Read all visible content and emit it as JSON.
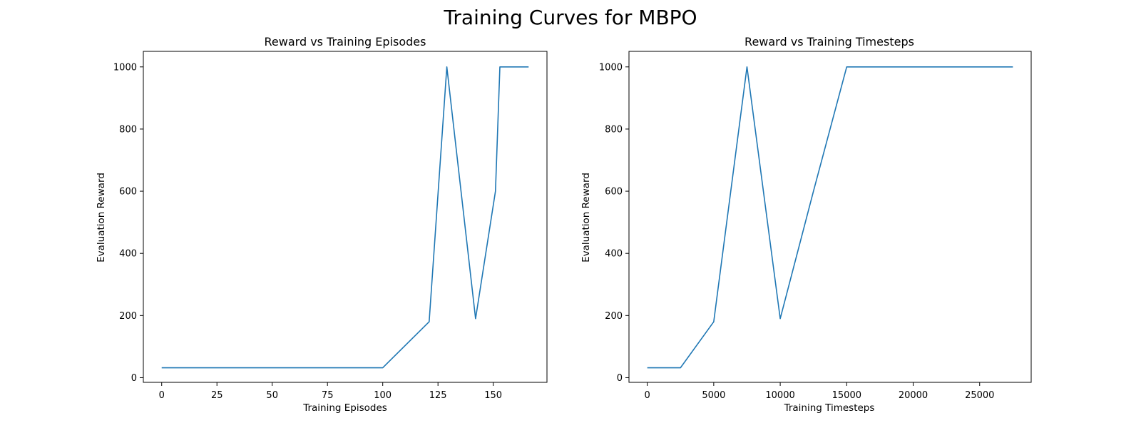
{
  "figure": {
    "suptitle": "Training Curves for MBPO"
  },
  "colors": {
    "line": "#1f77b4",
    "background": "#ffffff",
    "axes": "#000000"
  },
  "chart_data": [
    {
      "type": "line",
      "title": "Reward vs Training Episodes",
      "xlabel": "Training Episodes",
      "ylabel": "Evaluation Reward",
      "xlim": [
        -8.3,
        174.3
      ],
      "ylim": [
        -15,
        1050
      ],
      "xticks": [
        0,
        25,
        50,
        75,
        100,
        125,
        150
      ],
      "yticks": [
        0,
        200,
        400,
        600,
        800,
        1000
      ],
      "grid": false,
      "series": [
        {
          "x": [
            0,
            100,
            121,
            129,
            142,
            151,
            153,
            166
          ],
          "y": [
            32,
            32,
            180,
            1000,
            190,
            600,
            1000,
            1000
          ]
        }
      ]
    },
    {
      "type": "line",
      "title": "Reward vs Training Timesteps",
      "xlabel": "Training Timesteps",
      "ylabel": "Evaluation Reward",
      "xlim": [
        -1375,
        28875
      ],
      "ylim": [
        -15,
        1050
      ],
      "xticks": [
        0,
        5000,
        10000,
        15000,
        20000,
        25000
      ],
      "yticks": [
        0,
        200,
        400,
        600,
        800,
        1000
      ],
      "grid": false,
      "series": [
        {
          "x": [
            0,
            2500,
            5000,
            7500,
            10000,
            12500,
            15000,
            17500,
            20000,
            22500,
            25000,
            27500
          ],
          "y": [
            32,
            32,
            180,
            1000,
            190,
            600,
            1000,
            1000,
            1000,
            1000,
            1000,
            1000
          ]
        }
      ]
    }
  ]
}
